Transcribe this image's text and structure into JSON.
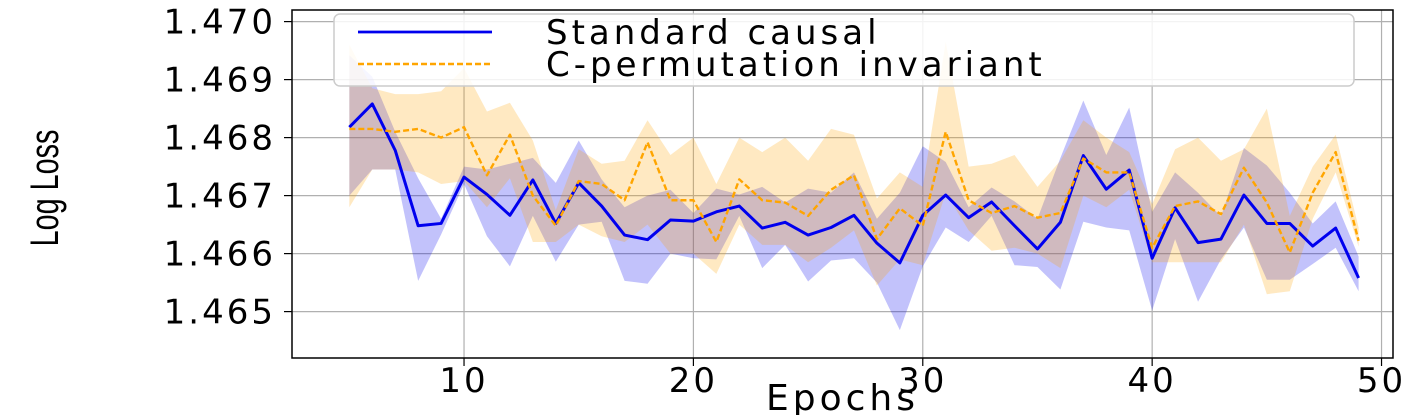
{
  "chart_data": {
    "type": "line",
    "title": "",
    "xlabel": "Epochs",
    "ylabel": "Log Loss",
    "xlim": [
      2.5,
      50.5
    ],
    "ylim": [
      1.4642,
      1.4702
    ],
    "xticks": [
      10,
      20,
      30,
      40,
      50
    ],
    "xtick_labels": [
      "10",
      "20",
      "30",
      "40",
      "50"
    ],
    "yticks": [
      1.465,
      1.466,
      1.467,
      1.468,
      1.469,
      1.47
    ],
    "ytick_labels": [
      "1.465",
      "1.466",
      "1.467",
      "1.468",
      "1.469",
      "1.470"
    ],
    "grid": true,
    "legend_position": "top",
    "x": [
      5,
      6,
      7,
      8,
      9,
      10,
      11,
      12,
      13,
      14,
      15,
      16,
      17,
      18,
      19,
      20,
      21,
      22,
      23,
      24,
      25,
      26,
      27,
      28,
      29,
      30,
      31,
      32,
      33,
      34,
      35,
      36,
      37,
      38,
      39,
      40,
      41,
      42,
      43,
      44,
      45,
      46,
      47,
      48,
      49
    ],
    "series": [
      {
        "name": "Standard causal",
        "color": "#0000ee",
        "line_style": "solid",
        "values": [
          1.46818,
          1.46858,
          1.46778,
          1.46648,
          1.46652,
          1.46732,
          1.46702,
          1.46666,
          1.46727,
          1.46652,
          1.46722,
          1.46682,
          1.46632,
          1.46624,
          1.46658,
          1.46656,
          1.46672,
          1.46682,
          1.46644,
          1.46654,
          1.46632,
          1.46645,
          1.46666,
          1.46618,
          1.46584,
          1.46666,
          1.46701,
          1.46662,
          1.46689,
          1.46648,
          1.46608,
          1.46654,
          1.46769,
          1.46711,
          1.46744,
          1.46592,
          1.46679,
          1.46619,
          1.46625,
          1.46701,
          1.46652,
          1.46652,
          1.46613,
          1.46644,
          1.46558
        ],
        "lower": [
          1.467,
          1.46745,
          1.46745,
          1.46553,
          1.46633,
          1.4672,
          1.4663,
          1.46578,
          1.46665,
          1.46586,
          1.4665,
          1.46655,
          1.46553,
          1.46548,
          1.466,
          1.46592,
          1.4659,
          1.46665,
          1.46575,
          1.46615,
          1.46552,
          1.46588,
          1.46592,
          1.4655,
          1.46468,
          1.46578,
          1.46645,
          1.4662,
          1.46665,
          1.4658,
          1.46577,
          1.46538,
          1.46655,
          1.46645,
          1.4664,
          1.46502,
          1.46625,
          1.46517,
          1.4659,
          1.46645,
          1.46555,
          1.46555,
          1.46582,
          1.4661,
          1.46535
        ],
        "upper": [
          1.46942,
          1.46905,
          1.4681,
          1.4673,
          1.4666,
          1.4675,
          1.46745,
          1.46755,
          1.46765,
          1.46722,
          1.46795,
          1.46728,
          1.4668,
          1.467,
          1.4671,
          1.4667,
          1.46712,
          1.46702,
          1.46715,
          1.46688,
          1.46712,
          1.46705,
          1.4674,
          1.4666,
          1.46705,
          1.46785,
          1.46758,
          1.4668,
          1.46714,
          1.4669,
          1.4666,
          1.46765,
          1.46864,
          1.4677,
          1.46852,
          1.46672,
          1.4674,
          1.46705,
          1.46664,
          1.46782,
          1.46752,
          1.46705,
          1.46652,
          1.4669,
          1.46595
        ]
      },
      {
        "name": "C-permutation invariant",
        "color": "#ffa500",
        "line_style": "dashed",
        "values": [
          1.46815,
          1.46815,
          1.4681,
          1.46815,
          1.468,
          1.46818,
          1.46735,
          1.46805,
          1.467,
          1.46648,
          1.46725,
          1.4672,
          1.46692,
          1.46792,
          1.46692,
          1.46692,
          1.4662,
          1.46728,
          1.46692,
          1.46688,
          1.46665,
          1.4671,
          1.46735,
          1.46625,
          1.46678,
          1.46648,
          1.4681,
          1.46692,
          1.4667,
          1.46682,
          1.46662,
          1.4667,
          1.46764,
          1.4674,
          1.4674,
          1.4661,
          1.46682,
          1.4669,
          1.46668,
          1.46748,
          1.46688,
          1.46602,
          1.46705,
          1.46775,
          1.46622
        ],
        "lower": [
          1.4668,
          1.46745,
          1.46745,
          1.4674,
          1.4672,
          1.46725,
          1.4668,
          1.4673,
          1.4662,
          1.4662,
          1.4665,
          1.4663,
          1.4662,
          1.4665,
          1.466,
          1.466,
          1.46565,
          1.4665,
          1.46615,
          1.46615,
          1.46585,
          1.4661,
          1.4664,
          1.46545,
          1.4659,
          1.4658,
          1.46705,
          1.4664,
          1.46605,
          1.4661,
          1.466,
          1.46575,
          1.467,
          1.4668,
          1.4671,
          1.46585,
          1.46585,
          1.46585,
          1.46585,
          1.4665,
          1.4653,
          1.46535,
          1.4666,
          1.4674,
          1.46612
        ],
        "upper": [
          1.4696,
          1.46885,
          1.46875,
          1.46875,
          1.4688,
          1.4692,
          1.46845,
          1.4686,
          1.46795,
          1.46675,
          1.4678,
          1.46755,
          1.4676,
          1.4683,
          1.4677,
          1.468,
          1.4672,
          1.468,
          1.46775,
          1.468,
          1.4676,
          1.46815,
          1.46805,
          1.46695,
          1.4674,
          1.46715,
          1.46965,
          1.4675,
          1.46755,
          1.4677,
          1.46715,
          1.4676,
          1.4683,
          1.468,
          1.46775,
          1.46685,
          1.4678,
          1.468,
          1.4676,
          1.4678,
          1.4685,
          1.46665,
          1.4675,
          1.46805,
          1.46645
        ]
      }
    ]
  }
}
